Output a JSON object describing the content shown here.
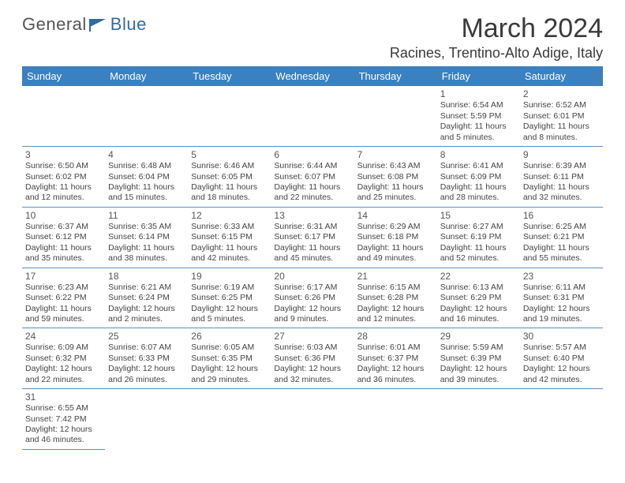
{
  "brand": {
    "part1": "General",
    "part2": "Blue"
  },
  "header": {
    "title": "March 2024",
    "location": "Racines, Trentino-Alto Adige, Italy"
  },
  "colors": {
    "header_bg": "#3b80bf",
    "header_text": "#ffffff",
    "cell_border": "#5a8fc0",
    "text": "#333333",
    "brand_blue": "#2f6aa8"
  },
  "weekdays": [
    "Sunday",
    "Monday",
    "Tuesday",
    "Wednesday",
    "Thursday",
    "Friday",
    "Saturday"
  ],
  "calendar": {
    "first_weekday_index": 5,
    "days": [
      {
        "n": 1,
        "sunrise": "6:54 AM",
        "sunset": "5:59 PM",
        "daylight": "11 hours and 5 minutes."
      },
      {
        "n": 2,
        "sunrise": "6:52 AM",
        "sunset": "6:01 PM",
        "daylight": "11 hours and 8 minutes."
      },
      {
        "n": 3,
        "sunrise": "6:50 AM",
        "sunset": "6:02 PM",
        "daylight": "11 hours and 12 minutes."
      },
      {
        "n": 4,
        "sunrise": "6:48 AM",
        "sunset": "6:04 PM",
        "daylight": "11 hours and 15 minutes."
      },
      {
        "n": 5,
        "sunrise": "6:46 AM",
        "sunset": "6:05 PM",
        "daylight": "11 hours and 18 minutes."
      },
      {
        "n": 6,
        "sunrise": "6:44 AM",
        "sunset": "6:07 PM",
        "daylight": "11 hours and 22 minutes."
      },
      {
        "n": 7,
        "sunrise": "6:43 AM",
        "sunset": "6:08 PM",
        "daylight": "11 hours and 25 minutes."
      },
      {
        "n": 8,
        "sunrise": "6:41 AM",
        "sunset": "6:09 PM",
        "daylight": "11 hours and 28 minutes."
      },
      {
        "n": 9,
        "sunrise": "6:39 AM",
        "sunset": "6:11 PM",
        "daylight": "11 hours and 32 minutes."
      },
      {
        "n": 10,
        "sunrise": "6:37 AM",
        "sunset": "6:12 PM",
        "daylight": "11 hours and 35 minutes."
      },
      {
        "n": 11,
        "sunrise": "6:35 AM",
        "sunset": "6:14 PM",
        "daylight": "11 hours and 38 minutes."
      },
      {
        "n": 12,
        "sunrise": "6:33 AM",
        "sunset": "6:15 PM",
        "daylight": "11 hours and 42 minutes."
      },
      {
        "n": 13,
        "sunrise": "6:31 AM",
        "sunset": "6:17 PM",
        "daylight": "11 hours and 45 minutes."
      },
      {
        "n": 14,
        "sunrise": "6:29 AM",
        "sunset": "6:18 PM",
        "daylight": "11 hours and 49 minutes."
      },
      {
        "n": 15,
        "sunrise": "6:27 AM",
        "sunset": "6:19 PM",
        "daylight": "11 hours and 52 minutes."
      },
      {
        "n": 16,
        "sunrise": "6:25 AM",
        "sunset": "6:21 PM",
        "daylight": "11 hours and 55 minutes."
      },
      {
        "n": 17,
        "sunrise": "6:23 AM",
        "sunset": "6:22 PM",
        "daylight": "11 hours and 59 minutes."
      },
      {
        "n": 18,
        "sunrise": "6:21 AM",
        "sunset": "6:24 PM",
        "daylight": "12 hours and 2 minutes."
      },
      {
        "n": 19,
        "sunrise": "6:19 AM",
        "sunset": "6:25 PM",
        "daylight": "12 hours and 5 minutes."
      },
      {
        "n": 20,
        "sunrise": "6:17 AM",
        "sunset": "6:26 PM",
        "daylight": "12 hours and 9 minutes."
      },
      {
        "n": 21,
        "sunrise": "6:15 AM",
        "sunset": "6:28 PM",
        "daylight": "12 hours and 12 minutes."
      },
      {
        "n": 22,
        "sunrise": "6:13 AM",
        "sunset": "6:29 PM",
        "daylight": "12 hours and 16 minutes."
      },
      {
        "n": 23,
        "sunrise": "6:11 AM",
        "sunset": "6:31 PM",
        "daylight": "12 hours and 19 minutes."
      },
      {
        "n": 24,
        "sunrise": "6:09 AM",
        "sunset": "6:32 PM",
        "daylight": "12 hours and 22 minutes."
      },
      {
        "n": 25,
        "sunrise": "6:07 AM",
        "sunset": "6:33 PM",
        "daylight": "12 hours and 26 minutes."
      },
      {
        "n": 26,
        "sunrise": "6:05 AM",
        "sunset": "6:35 PM",
        "daylight": "12 hours and 29 minutes."
      },
      {
        "n": 27,
        "sunrise": "6:03 AM",
        "sunset": "6:36 PM",
        "daylight": "12 hours and 32 minutes."
      },
      {
        "n": 28,
        "sunrise": "6:01 AM",
        "sunset": "6:37 PM",
        "daylight": "12 hours and 36 minutes."
      },
      {
        "n": 29,
        "sunrise": "5:59 AM",
        "sunset": "6:39 PM",
        "daylight": "12 hours and 39 minutes."
      },
      {
        "n": 30,
        "sunrise": "5:57 AM",
        "sunset": "6:40 PM",
        "daylight": "12 hours and 42 minutes."
      },
      {
        "n": 31,
        "sunrise": "6:55 AM",
        "sunset": "7:42 PM",
        "daylight": "12 hours and 46 minutes."
      }
    ]
  },
  "labels": {
    "sunrise": "Sunrise:",
    "sunset": "Sunset:",
    "daylight": "Daylight:"
  }
}
